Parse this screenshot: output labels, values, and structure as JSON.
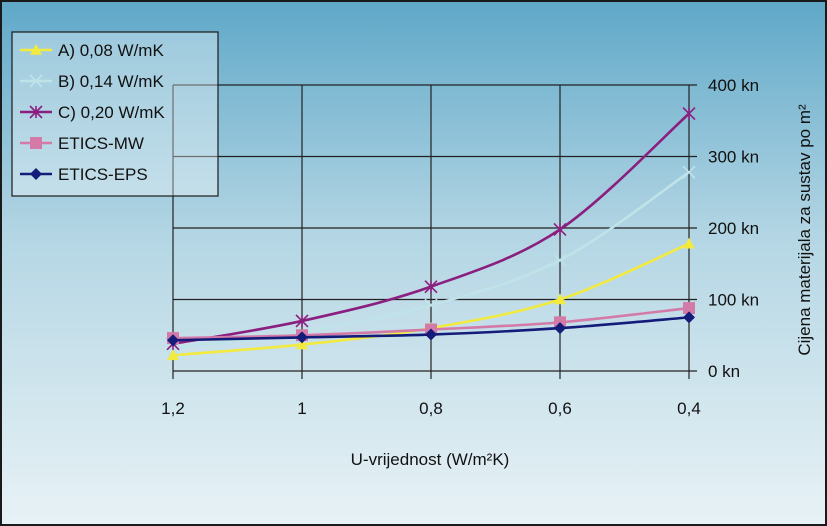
{
  "chart_data": {
    "type": "line",
    "x_ticks": [
      "1,2",
      "1",
      "0,8",
      "0,6",
      "0,4"
    ],
    "x": [
      1.2,
      1.0,
      0.8,
      0.6,
      0.4
    ],
    "xlabel": "U-vrijednost (W/m²K)",
    "ylabel": "Cijena materijala za sustav po m²",
    "y_ticks": [
      "0 kn",
      "100 kn",
      "200 kn",
      "300 kn",
      "400 kn"
    ],
    "ylim": [
      0,
      400
    ],
    "y_unit": "kn",
    "x_axis_reversed": true,
    "y_axis_position": "right",
    "grid": true,
    "legend_position": "top-left",
    "background_gradient": [
      "#5fa8c8",
      "#b4d6e4",
      "#e8f2f6"
    ],
    "series": [
      {
        "name": "A) 0,08 W/mK",
        "values": [
          22,
          37,
          60,
          100,
          178
        ],
        "color": "#f2ea3f",
        "marker": "triangle"
      },
      {
        "name": "B) 0,14 W/mK",
        "values": [
          32,
          55,
          92,
          155,
          278
        ],
        "color": "#bfe3e8",
        "marker": "x"
      },
      {
        "name": "C) 0,20 W/mK",
        "values": [
          38,
          70,
          118,
          198,
          360
        ],
        "color": "#8b1f7f",
        "marker": "star"
      },
      {
        "name": "ETICS-MW",
        "values": [
          46,
          50,
          58,
          68,
          88
        ],
        "color": "#d47aa8",
        "marker": "square"
      },
      {
        "name": "ETICS-EPS",
        "values": [
          43,
          47,
          51,
          60,
          75
        ],
        "color": "#141c7a",
        "marker": "diamond"
      }
    ]
  }
}
